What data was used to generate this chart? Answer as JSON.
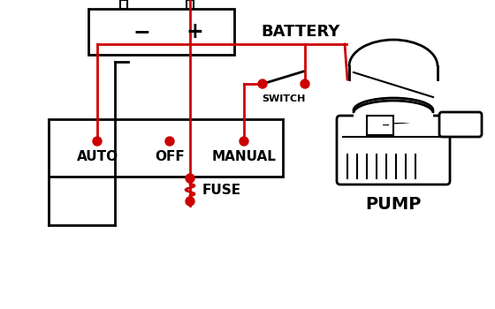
{
  "bg_color": "#ffffff",
  "wire_color": "#cc0000",
  "line_color": "#000000",
  "labels": {
    "auto": "AUTO",
    "off": "OFF",
    "manual": "MANUAL",
    "switch": "SWITCH",
    "pump": "PUMP",
    "fuse": "FUSE",
    "battery": "BATTERY",
    "minus": "−",
    "plus": "+"
  },
  "font_size_labels": 11,
  "font_size_large": 13,
  "font_size_small": 8
}
